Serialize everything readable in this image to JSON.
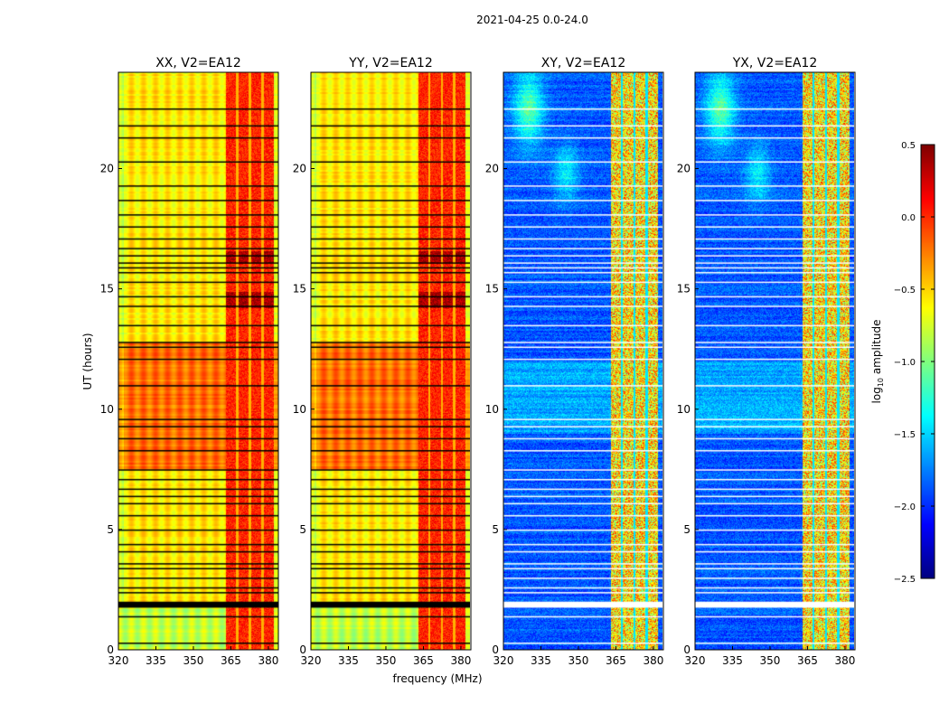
{
  "chart_data": {
    "type": "heatmap",
    "suptitle": "2021-04-25 0.0-24.0",
    "xlabel": "frequency (MHz)",
    "ylabel": "UT (hours)",
    "xlim": [
      320,
      384
    ],
    "ylim": [
      0,
      24
    ],
    "xticks": [
      "320",
      "335",
      "350",
      "365",
      "380"
    ],
    "xtick_values": [
      320,
      335,
      350,
      365,
      380
    ],
    "yticks": [
      "0",
      "5",
      "10",
      "15",
      "20"
    ],
    "ytick_values": [
      0,
      5,
      10,
      15,
      20
    ],
    "panels": [
      {
        "title": "XX, V2=EA12",
        "kind": "auto"
      },
      {
        "title": "YY, V2=EA12",
        "kind": "auto"
      },
      {
        "title": "XY, V2=EA12",
        "kind": "cross"
      },
      {
        "title": "YX, V2=EA12",
        "kind": "cross"
      }
    ],
    "colorbar": {
      "label": "log10 amplitude",
      "label_main": "log",
      "label_sub": "10",
      "label_rest": " amplitude",
      "range": [
        -2.5,
        0.5
      ],
      "ticks": [
        "0.5",
        "0.0",
        "−0.5",
        "−1.0",
        "−1.5",
        "−2.0",
        "−2.5"
      ],
      "tick_values": [
        0.5,
        0.0,
        -0.5,
        -1.0,
        -1.5,
        -2.0,
        -2.5
      ],
      "colormap": "jet"
    },
    "flagged_hours": [
      0.3,
      1.4,
      1.9,
      2.0,
      2.4,
      2.6,
      3.0,
      3.4,
      3.6,
      4.1,
      4.4,
      5.0,
      5.6,
      6.1,
      6.4,
      6.7,
      7.1,
      7.5,
      8.3,
      8.8,
      9.3,
      9.6,
      11.0,
      12.1,
      12.6,
      12.8,
      13.5,
      14.3,
      14.7,
      15.3,
      15.7,
      15.9,
      16.1,
      16.4,
      16.7,
      17.1,
      17.6,
      18.1,
      18.7,
      19.3,
      20.3,
      21.3,
      21.8,
      22.5
    ],
    "rfi_band_mhz": [
      363,
      382
    ]
  }
}
